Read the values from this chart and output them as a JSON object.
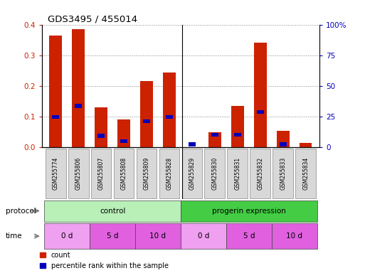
{
  "title": "GDS3495 / 455014",
  "samples": [
    "GSM255774",
    "GSM255806",
    "GSM255807",
    "GSM255808",
    "GSM255809",
    "GSM255828",
    "GSM255829",
    "GSM255830",
    "GSM255831",
    "GSM255832",
    "GSM255833",
    "GSM255834"
  ],
  "red_values": [
    0.365,
    0.385,
    0.13,
    0.09,
    0.215,
    0.245,
    0.0,
    0.05,
    0.135,
    0.34,
    0.053,
    0.015
  ],
  "blue_values": [
    0.1,
    0.135,
    0.038,
    0.02,
    0.085,
    0.1,
    0.01,
    0.042,
    0.042,
    0.115,
    0.01,
    0.0
  ],
  "ylim_left": [
    0,
    0.4
  ],
  "ylim_right": [
    0,
    100
  ],
  "yticks_left": [
    0,
    0.1,
    0.2,
    0.3,
    0.4
  ],
  "yticks_right": [
    0,
    25,
    50,
    75,
    100
  ],
  "ytick_labels_right": [
    "0",
    "25",
    "50",
    "75",
    "100%"
  ],
  "protocol_groups": [
    {
      "label": "control",
      "start": 0,
      "end": 6,
      "color": "#B8F0B8"
    },
    {
      "label": "progerin expression",
      "start": 6,
      "end": 12,
      "color": "#44CC44"
    }
  ],
  "time_groups": [
    {
      "label": "0 d",
      "start": 0,
      "end": 2,
      "color": "#F0A0F0"
    },
    {
      "label": "5 d",
      "start": 2,
      "end": 4,
      "color": "#E060E0"
    },
    {
      "label": "10 d",
      "start": 4,
      "end": 6,
      "color": "#E060E0"
    },
    {
      "label": "0 d",
      "start": 6,
      "end": 8,
      "color": "#F0A0F0"
    },
    {
      "label": "5 d",
      "start": 8,
      "end": 10,
      "color": "#E060E0"
    },
    {
      "label": "10 d",
      "start": 10,
      "end": 12,
      "color": "#E060E0"
    }
  ],
  "bar_width": 0.55,
  "red_color": "#CC2200",
  "blue_color": "#0000BB",
  "grid_color": "#888888",
  "bg_color": "#FFFFFF",
  "tick_label_color_left": "#CC2200",
  "tick_label_color_right": "#0000BB"
}
